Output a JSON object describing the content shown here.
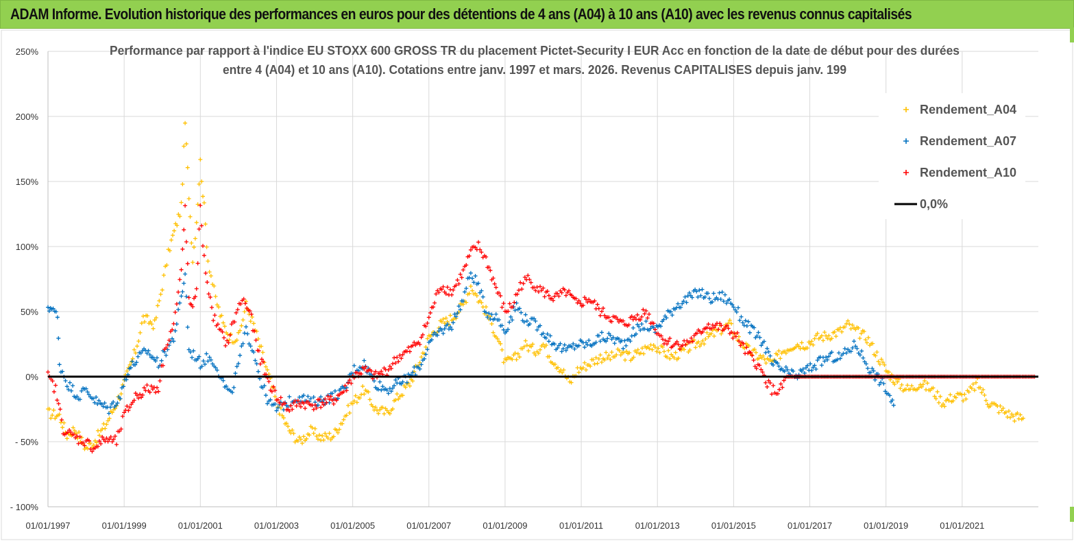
{
  "banner": {
    "text": "ADAM Informe. Evolution historique des performances en euros pour des détentions de 4 ans (A04) à 10 ans (A10) avec les revenus connus capitalisés"
  },
  "chart_data": {
    "type": "scatter",
    "title_lines": [
      "Performance par rapport à l'indice EU STOXX 600 GROSS TR  du placement Pictet-Security I EUR Acc en fonction de la date de début pour des durées",
      "entre 4 (A04) et 10 ans (A10). Cotations entre janv. 1997 et mars. 2026. Revenus CAPITALISES depuis janv. 199"
    ],
    "xlabel": "",
    "ylabel": "",
    "xlim": [
      1997.0,
      2023.0
    ],
    "ylim": [
      -100,
      250
    ],
    "y_ticks": [
      250,
      200,
      150,
      100,
      50,
      0,
      -50,
      -100
    ],
    "y_tick_labels": [
      "250%",
      "200%",
      "150%",
      "100%",
      "50%",
      "0%",
      "- 50%",
      "- 100%"
    ],
    "x_ticks": [
      1997,
      1999,
      2001,
      2003,
      2005,
      2007,
      2009,
      2011,
      2013,
      2015,
      2017,
      2019,
      2021
    ],
    "x_tick_labels": [
      "01/01/1997",
      "01/01/1999",
      "01/01/2001",
      "01/01/2003",
      "01/01/2005",
      "01/01/2007",
      "01/01/2009",
      "01/01/2011",
      "01/01/2013",
      "01/01/2015",
      "01/01/2017",
      "01/01/2019",
      "01/01/2021"
    ],
    "legend_position": "top-right",
    "series": [
      {
        "name": "Rendement_A04",
        "color": "#ffc000",
        "points": [
          [
            1997.0,
            -28
          ],
          [
            1997.3,
            -30
          ],
          [
            1997.5,
            -45
          ],
          [
            1997.7,
            -40
          ],
          [
            1998.0,
            -55
          ],
          [
            1998.2,
            -50
          ],
          [
            1998.5,
            -38
          ],
          [
            1998.8,
            -20
          ],
          [
            1999.0,
            -5
          ],
          [
            1999.3,
            20
          ],
          [
            1999.5,
            45
          ],
          [
            1999.8,
            40
          ],
          [
            2000.0,
            70
          ],
          [
            2000.2,
            100
          ],
          [
            2000.5,
            130
          ],
          [
            2000.6,
            195
          ],
          [
            2000.7,
            140
          ],
          [
            2000.8,
            90
          ],
          [
            2000.9,
            120
          ],
          [
            2001.0,
            165
          ],
          [
            2001.1,
            130
          ],
          [
            2001.2,
            90
          ],
          [
            2001.4,
            60
          ],
          [
            2001.6,
            40
          ],
          [
            2001.8,
            30
          ],
          [
            2002.0,
            30
          ],
          [
            2002.2,
            55
          ],
          [
            2002.4,
            40
          ],
          [
            2002.6,
            20
          ],
          [
            2002.8,
            0
          ],
          [
            2003.0,
            -20
          ],
          [
            2003.3,
            -40
          ],
          [
            2003.6,
            -50
          ],
          [
            2003.9,
            -42
          ],
          [
            2004.2,
            -47
          ],
          [
            2004.5,
            -45
          ],
          [
            2004.8,
            -30
          ],
          [
            2005.0,
            -20
          ],
          [
            2005.3,
            -10
          ],
          [
            2005.6,
            -25
          ],
          [
            2005.9,
            -28
          ],
          [
            2006.2,
            -15
          ],
          [
            2006.5,
            -5
          ],
          [
            2006.8,
            15
          ],
          [
            2007.0,
            30
          ],
          [
            2007.3,
            40
          ],
          [
            2007.6,
            45
          ],
          [
            2007.9,
            55
          ],
          [
            2008.1,
            70
          ],
          [
            2008.3,
            60
          ],
          [
            2008.5,
            50
          ],
          [
            2008.8,
            30
          ],
          [
            2009.0,
            10
          ],
          [
            2009.3,
            15
          ],
          [
            2009.5,
            25
          ],
          [
            2009.8,
            20
          ],
          [
            2010.0,
            25
          ],
          [
            2010.2,
            15
          ],
          [
            2010.5,
            5
          ],
          [
            2010.7,
            -5
          ],
          [
            2010.9,
            5
          ],
          [
            2011.2,
            10
          ],
          [
            2011.5,
            15
          ],
          [
            2011.8,
            15
          ],
          [
            2012.0,
            18
          ],
          [
            2012.3,
            15
          ],
          [
            2012.6,
            20
          ],
          [
            2012.9,
            25
          ],
          [
            2013.1,
            20
          ],
          [
            2013.4,
            15
          ],
          [
            2013.7,
            20
          ],
          [
            2014.0,
            25
          ],
          [
            2014.3,
            30
          ],
          [
            2014.6,
            35
          ],
          [
            2014.9,
            40
          ],
          [
            2015.1,
            30
          ],
          [
            2015.4,
            20
          ],
          [
            2015.7,
            15
          ],
          [
            2016.0,
            10
          ],
          [
            2016.3,
            20
          ],
          [
            2016.6,
            25
          ],
          [
            2016.9,
            25
          ],
          [
            2017.2,
            30
          ],
          [
            2017.5,
            32
          ],
          [
            2017.8,
            35
          ],
          [
            2018.0,
            40
          ],
          [
            2018.2,
            35
          ],
          [
            2018.5,
            30
          ],
          [
            2018.8,
            15
          ],
          [
            2019.0,
            5
          ],
          [
            2019.3,
            -5
          ],
          [
            2019.6,
            -10
          ],
          [
            2019.9,
            -5
          ],
          [
            2020.2,
            -10
          ],
          [
            2020.5,
            -20
          ],
          [
            2020.8,
            -15
          ],
          [
            2021.1,
            -15
          ],
          [
            2021.4,
            -5
          ],
          [
            2021.7,
            -20
          ],
          [
            2022.0,
            -25
          ],
          [
            2022.3,
            -30
          ],
          [
            2022.6,
            -32
          ]
        ]
      },
      {
        "name": "Rendement_A07",
        "color": "#0070c0",
        "points": [
          [
            1997.0,
            50
          ],
          [
            1997.1,
            55
          ],
          [
            1997.25,
            45
          ],
          [
            1997.3,
            10
          ],
          [
            1997.5,
            -5
          ],
          [
            1997.8,
            -15
          ],
          [
            1998.0,
            -10
          ],
          [
            1998.3,
            -20
          ],
          [
            1998.6,
            -25
          ],
          [
            1998.9,
            -15
          ],
          [
            1999.1,
            5
          ],
          [
            1999.4,
            15
          ],
          [
            1999.6,
            20
          ],
          [
            1999.9,
            10
          ],
          [
            2000.1,
            20
          ],
          [
            2000.3,
            30
          ],
          [
            2000.5,
            60
          ],
          [
            2000.6,
            80
          ],
          [
            2000.7,
            20
          ],
          [
            2000.9,
            15
          ],
          [
            2001.0,
            10
          ],
          [
            2001.2,
            15
          ],
          [
            2001.4,
            10
          ],
          [
            2001.6,
            -5
          ],
          [
            2001.8,
            -15
          ],
          [
            2002.0,
            10
          ],
          [
            2002.2,
            35
          ],
          [
            2002.4,
            20
          ],
          [
            2002.6,
            -5
          ],
          [
            2002.8,
            -20
          ],
          [
            2003.0,
            -25
          ],
          [
            2003.3,
            -20
          ],
          [
            2003.6,
            -15
          ],
          [
            2003.9,
            -20
          ],
          [
            2004.2,
            -18
          ],
          [
            2004.5,
            -15
          ],
          [
            2004.8,
            -10
          ],
          [
            2005.0,
            5
          ],
          [
            2005.3,
            10
          ],
          [
            2005.6,
            -5
          ],
          [
            2005.9,
            -10
          ],
          [
            2006.2,
            -5
          ],
          [
            2006.5,
            0
          ],
          [
            2006.8,
            10
          ],
          [
            2007.0,
            25
          ],
          [
            2007.3,
            35
          ],
          [
            2007.6,
            40
          ],
          [
            2007.9,
            60
          ],
          [
            2008.1,
            80
          ],
          [
            2008.3,
            70
          ],
          [
            2008.5,
            50
          ],
          [
            2008.8,
            45
          ],
          [
            2009.0,
            35
          ],
          [
            2009.3,
            55
          ],
          [
            2009.5,
            45
          ],
          [
            2009.8,
            40
          ],
          [
            2010.0,
            35
          ],
          [
            2010.3,
            25
          ],
          [
            2010.6,
            20
          ],
          [
            2010.9,
            25
          ],
          [
            2011.2,
            25
          ],
          [
            2011.5,
            30
          ],
          [
            2011.8,
            30
          ],
          [
            2012.1,
            25
          ],
          [
            2012.4,
            35
          ],
          [
            2012.7,
            40
          ],
          [
            2012.9,
            35
          ],
          [
            2013.2,
            45
          ],
          [
            2013.5,
            55
          ],
          [
            2013.8,
            60
          ],
          [
            2014.1,
            65
          ],
          [
            2014.4,
            60
          ],
          [
            2014.7,
            62
          ],
          [
            2015.0,
            55
          ],
          [
            2015.2,
            45
          ],
          [
            2015.5,
            35
          ],
          [
            2015.8,
            25
          ],
          [
            2016.0,
            10
          ],
          [
            2016.3,
            5
          ],
          [
            2016.6,
            0
          ],
          [
            2016.9,
            5
          ],
          [
            2017.2,
            10
          ],
          [
            2017.5,
            15
          ],
          [
            2017.8,
            15
          ],
          [
            2018.0,
            20
          ],
          [
            2018.2,
            25
          ],
          [
            2018.4,
            15
          ],
          [
            2018.6,
            5
          ],
          [
            2018.9,
            -5
          ],
          [
            2019.1,
            -15
          ],
          [
            2019.2,
            -22
          ]
        ]
      },
      {
        "name": "Rendement_A10",
        "color": "#ff0000",
        "points": [
          [
            1997.0,
            0
          ],
          [
            1997.2,
            -10
          ],
          [
            1997.4,
            -40
          ],
          [
            1997.6,
            -45
          ],
          [
            1997.8,
            -48
          ],
          [
            1998.0,
            -50
          ],
          [
            1998.2,
            -55
          ],
          [
            1998.5,
            -48
          ],
          [
            1998.8,
            -50
          ],
          [
            1999.0,
            -30
          ],
          [
            1999.3,
            -15
          ],
          [
            1999.6,
            -10
          ],
          [
            1999.9,
            -8
          ],
          [
            2000.1,
            25
          ],
          [
            2000.3,
            40
          ],
          [
            2000.5,
            80
          ],
          [
            2000.6,
            130
          ],
          [
            2000.7,
            60
          ],
          [
            2000.8,
            50
          ],
          [
            2000.9,
            70
          ],
          [
            2001.0,
            130
          ],
          [
            2001.1,
            90
          ],
          [
            2001.3,
            50
          ],
          [
            2001.5,
            35
          ],
          [
            2001.7,
            25
          ],
          [
            2001.9,
            45
          ],
          [
            2002.1,
            60
          ],
          [
            2002.3,
            50
          ],
          [
            2002.5,
            20
          ],
          [
            2002.8,
            -5
          ],
          [
            2003.0,
            -15
          ],
          [
            2003.3,
            -25
          ],
          [
            2003.6,
            -20
          ],
          [
            2003.9,
            -22
          ],
          [
            2004.2,
            -20
          ],
          [
            2004.5,
            -18
          ],
          [
            2004.8,
            -10
          ],
          [
            2005.0,
            0
          ],
          [
            2005.3,
            5
          ],
          [
            2005.6,
            0
          ],
          [
            2005.9,
            5
          ],
          [
            2006.2,
            15
          ],
          [
            2006.5,
            20
          ],
          [
            2006.8,
            30
          ],
          [
            2007.0,
            45
          ],
          [
            2007.3,
            70
          ],
          [
            2007.6,
            65
          ],
          [
            2007.9,
            80
          ],
          [
            2008.1,
            95
          ],
          [
            2008.3,
            100
          ],
          [
            2008.5,
            90
          ],
          [
            2008.8,
            65
          ],
          [
            2009.0,
            50
          ],
          [
            2009.2,
            55
          ],
          [
            2009.4,
            70
          ],
          [
            2009.6,
            75
          ],
          [
            2009.8,
            70
          ],
          [
            2010.0,
            65
          ],
          [
            2010.3,
            60
          ],
          [
            2010.6,
            65
          ],
          [
            2010.9,
            55
          ],
          [
            2011.2,
            60
          ],
          [
            2011.5,
            50
          ],
          [
            2011.8,
            45
          ],
          [
            2012.1,
            40
          ],
          [
            2012.4,
            45
          ],
          [
            2012.7,
            50
          ],
          [
            2012.9,
            40
          ],
          [
            2013.1,
            30
          ],
          [
            2013.4,
            25
          ],
          [
            2013.7,
            25
          ],
          [
            2014.0,
            30
          ],
          [
            2014.3,
            40
          ],
          [
            2014.6,
            38
          ],
          [
            2014.9,
            35
          ],
          [
            2015.1,
            30
          ],
          [
            2015.3,
            20
          ],
          [
            2015.6,
            10
          ],
          [
            2015.8,
            0
          ],
          [
            2016.0,
            -10
          ],
          [
            2016.2,
            -12
          ],
          [
            2016.4,
            0
          ],
          [
            2016.7,
            0
          ],
          [
            2017.0,
            0
          ],
          [
            2017.5,
            0
          ],
          [
            2018.0,
            0
          ],
          [
            2018.5,
            0
          ],
          [
            2019.0,
            0
          ],
          [
            2019.5,
            0
          ],
          [
            2020.0,
            0
          ],
          [
            2020.5,
            0
          ],
          [
            2021.0,
            0
          ],
          [
            2021.5,
            0
          ],
          [
            2022.0,
            0
          ],
          [
            2022.5,
            0
          ],
          [
            2022.9,
            0
          ]
        ]
      },
      {
        "name": "0,0%",
        "color": "#000000",
        "line_y": 0
      }
    ]
  }
}
